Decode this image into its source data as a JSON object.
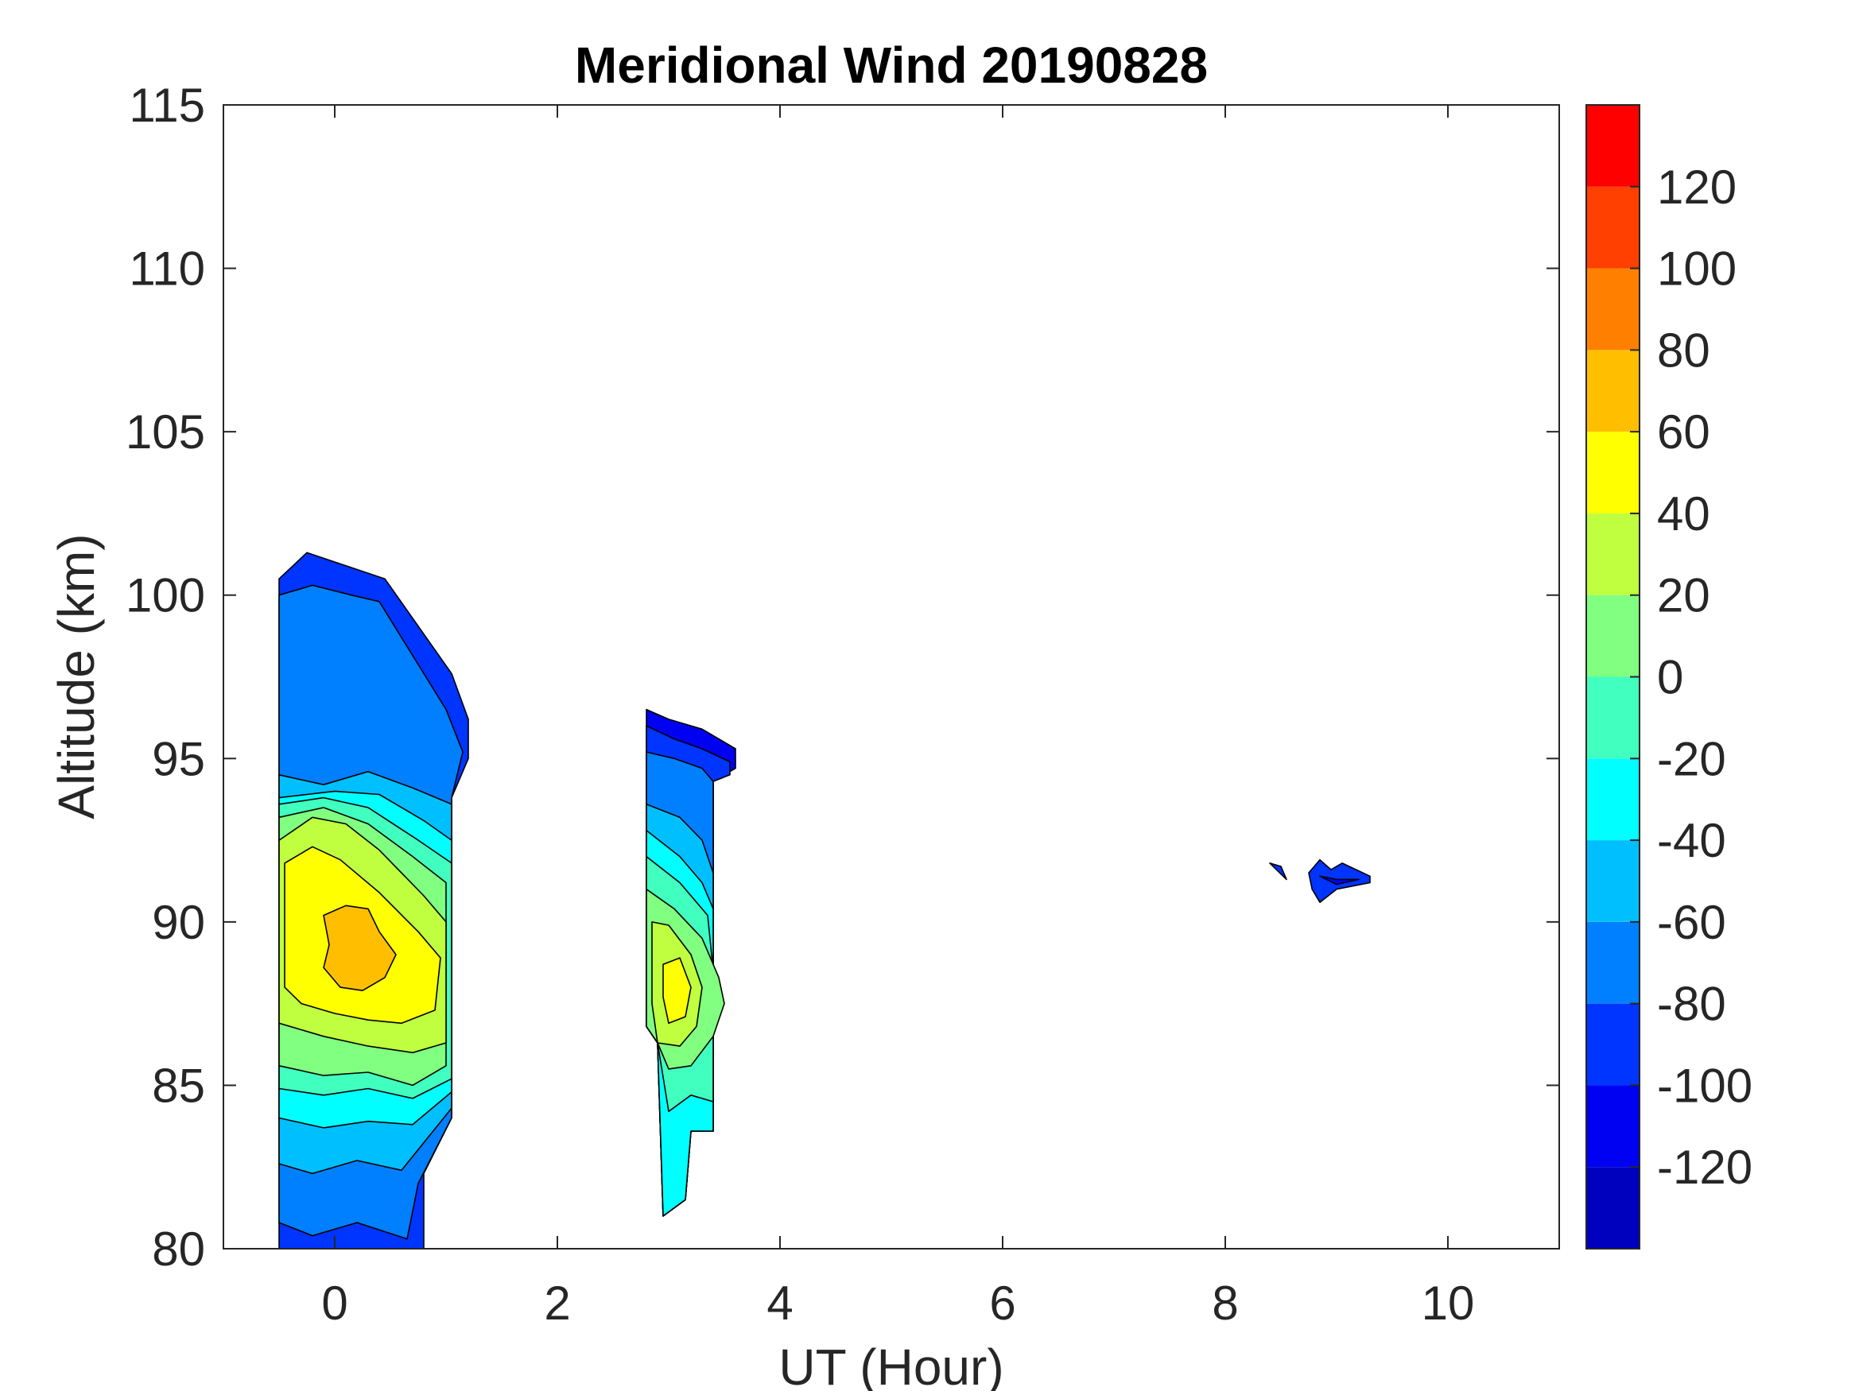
{
  "chart_data": {
    "type": "contour",
    "title": "Meridional Wind 20190828",
    "xlabel": "UT (Hour)",
    "ylabel": "Altitude (km)",
    "xlim": [
      -1,
      11
    ],
    "ylim": [
      80,
      115
    ],
    "xticks": [
      0,
      2,
      4,
      6,
      8,
      10
    ],
    "yticks": [
      80,
      85,
      90,
      95,
      100,
      105,
      110,
      115
    ],
    "colorbar": {
      "min": -140,
      "max": 140,
      "ticks": [
        -120,
        -100,
        -80,
        -60,
        -40,
        -20,
        0,
        20,
        40,
        60,
        80,
        100,
        120
      ],
      "levels": [
        {
          "from": -140,
          "to": -120,
          "color": "#0000bf"
        },
        {
          "from": -120,
          "to": -100,
          "color": "#0000f2"
        },
        {
          "from": -100,
          "to": -80,
          "color": "#0034ff"
        },
        {
          "from": -80,
          "to": -60,
          "color": "#0080ff"
        },
        {
          "from": -60,
          "to": -40,
          "color": "#00bfff"
        },
        {
          "from": -40,
          "to": -20,
          "color": "#00ffff"
        },
        {
          "from": -20,
          "to": 0,
          "color": "#40ffbf"
        },
        {
          "from": 0,
          "to": 20,
          "color": "#80ff80"
        },
        {
          "from": 20,
          "to": 40,
          "color": "#bfff40"
        },
        {
          "from": 40,
          "to": 60,
          "color": "#ffff00"
        },
        {
          "from": 60,
          "to": 80,
          "color": "#ffbf00"
        },
        {
          "from": 80,
          "to": 100,
          "color": "#ff8000"
        },
        {
          "from": 100,
          "to": 120,
          "color": "#ff4000"
        },
        {
          "from": 120,
          "to": 140,
          "color": "#ff0000"
        }
      ]
    },
    "regions": [
      {
        "name": "block-1",
        "bands": [
          {
            "value": -100,
            "points": [
              [
                -0.5,
                100.5
              ],
              [
                -0.25,
                101.3
              ],
              [
                0.1,
                100.9
              ],
              [
                0.45,
                100.5
              ],
              [
                1.05,
                97.6
              ],
              [
                1.2,
                96.2
              ],
              [
                1.2,
                95.0
              ],
              [
                1.05,
                93.8
              ],
              [
                1.05,
                84.0
              ],
              [
                0.8,
                82.3
              ],
              [
                0.8,
                80
              ],
              [
                -0.5,
                80
              ]
            ]
          },
          {
            "value": -80,
            "points": [
              [
                -0.5,
                100.0
              ],
              [
                -0.2,
                100.3
              ],
              [
                0.15,
                100.0
              ],
              [
                0.4,
                99.8
              ],
              [
                1.0,
                96.5
              ],
              [
                1.15,
                95.2
              ],
              [
                1.05,
                93.8
              ],
              [
                1.05,
                84.0
              ],
              [
                0.75,
                82.0
              ],
              [
                0.65,
                80.3
              ],
              [
                0.2,
                80.8
              ],
              [
                -0.2,
                80.4
              ],
              [
                -0.5,
                80.8
              ]
            ]
          },
          {
            "value": -60,
            "points": [
              [
                -0.5,
                94.5
              ],
              [
                -0.1,
                94.2
              ],
              [
                0.3,
                94.6
              ],
              [
                0.7,
                94.1
              ],
              [
                1.05,
                93.6
              ],
              [
                1.05,
                84.3
              ],
              [
                0.6,
                82.4
              ],
              [
                0.2,
                82.7
              ],
              [
                -0.2,
                82.3
              ],
              [
                -0.5,
                82.6
              ]
            ]
          },
          {
            "value": -40,
            "points": [
              [
                -0.5,
                93.8
              ],
              [
                0.0,
                94.0
              ],
              [
                0.4,
                93.9
              ],
              [
                0.8,
                93.1
              ],
              [
                1.05,
                92.5
              ],
              [
                1.05,
                84.8
              ],
              [
                0.7,
                83.8
              ],
              [
                0.3,
                83.9
              ],
              [
                -0.1,
                83.7
              ],
              [
                -0.5,
                84.0
              ]
            ]
          },
          {
            "value": -20,
            "points": [
              [
                -0.5,
                93.6
              ],
              [
                -0.1,
                93.8
              ],
              [
                0.3,
                93.5
              ],
              [
                0.75,
                92.5
              ],
              [
                1.05,
                91.8
              ],
              [
                1.05,
                85.2
              ],
              [
                0.7,
                84.6
              ],
              [
                0.3,
                84.9
              ],
              [
                -0.1,
                84.7
              ],
              [
                -0.5,
                84.9
              ]
            ]
          },
          {
            "value": 0,
            "points": [
              [
                -0.5,
                93.2
              ],
              [
                -0.1,
                93.5
              ],
              [
                0.3,
                93.0
              ],
              [
                0.7,
                92.0
              ],
              [
                1.0,
                91.2
              ],
              [
                1.0,
                85.6
              ],
              [
                0.7,
                85.0
              ],
              [
                0.3,
                85.4
              ],
              [
                -0.1,
                85.3
              ],
              [
                -0.5,
                85.6
              ]
            ]
          },
          {
            "value": 20,
            "points": [
              [
                -0.5,
                92.5
              ],
              [
                -0.2,
                93.2
              ],
              [
                0.1,
                93.0
              ],
              [
                0.4,
                92.2
              ],
              [
                0.8,
                90.8
              ],
              [
                1.0,
                90.0
              ],
              [
                1.0,
                86.3
              ],
              [
                0.7,
                86.0
              ],
              [
                0.3,
                86.2
              ],
              [
                -0.1,
                86.5
              ],
              [
                -0.5,
                86.9
              ]
            ]
          },
          {
            "value": 40,
            "points": [
              [
                -0.45,
                91.8
              ],
              [
                -0.2,
                92.3
              ],
              [
                0.05,
                91.9
              ],
              [
                0.4,
                90.9
              ],
              [
                0.75,
                89.7
              ],
              [
                0.95,
                88.9
              ],
              [
                0.9,
                87.3
              ],
              [
                0.6,
                86.9
              ],
              [
                0.3,
                87.0
              ],
              [
                0.0,
                87.2
              ],
              [
                -0.3,
                87.5
              ],
              [
                -0.45,
                88.0
              ]
            ]
          },
          {
            "value": 60,
            "points": [
              [
                -0.1,
                90.2
              ],
              [
                0.1,
                90.5
              ],
              [
                0.3,
                90.4
              ],
              [
                0.4,
                89.7
              ],
              [
                0.55,
                89.0
              ],
              [
                0.45,
                88.3
              ],
              [
                0.25,
                87.9
              ],
              [
                0.05,
                88.0
              ],
              [
                -0.1,
                88.6
              ],
              [
                -0.05,
                89.3
              ]
            ]
          }
        ]
      },
      {
        "name": "block-2",
        "bands": [
          {
            "value": -120,
            "points": [
              [
                2.8,
                96.5
              ],
              [
                3.0,
                96.2
              ],
              [
                3.3,
                95.9
              ],
              [
                3.6,
                95.3
              ],
              [
                3.6,
                94.7
              ],
              [
                3.4,
                94.3
              ],
              [
                3.4,
                83.6
              ],
              [
                3.2,
                83.6
              ],
              [
                3.15,
                81.5
              ],
              [
                2.95,
                81.0
              ],
              [
                2.9,
                86.3
              ],
              [
                2.8,
                86.8
              ]
            ]
          },
          {
            "value": -100,
            "points": [
              [
                2.8,
                96.0
              ],
              [
                3.05,
                95.6
              ],
              [
                3.3,
                95.3
              ],
              [
                3.55,
                94.9
              ],
              [
                3.55,
                94.5
              ],
              [
                3.4,
                94.3
              ],
              [
                3.4,
                83.6
              ],
              [
                3.2,
                83.6
              ],
              [
                3.15,
                81.5
              ],
              [
                2.95,
                81.0
              ],
              [
                2.9,
                86.3
              ],
              [
                2.8,
                86.8
              ]
            ]
          },
          {
            "value": -80,
            "points": [
              [
                2.8,
                95.2
              ],
              [
                3.05,
                95.0
              ],
              [
                3.3,
                94.7
              ],
              [
                3.4,
                94.3
              ],
              [
                3.4,
                83.6
              ],
              [
                3.2,
                83.6
              ],
              [
                3.15,
                81.5
              ],
              [
                2.95,
                81.0
              ],
              [
                2.9,
                86.3
              ],
              [
                2.8,
                86.8
              ]
            ]
          },
          {
            "value": -60,
            "points": [
              [
                2.8,
                93.6
              ],
              [
                3.1,
                93.2
              ],
              [
                3.3,
                92.5
              ],
              [
                3.4,
                91.5
              ],
              [
                3.4,
                83.6
              ],
              [
                3.2,
                83.6
              ],
              [
                3.15,
                81.5
              ],
              [
                2.95,
                81.0
              ],
              [
                2.9,
                86.3
              ],
              [
                2.8,
                86.8
              ]
            ]
          },
          {
            "value": -40,
            "points": [
              [
                2.8,
                92.8
              ],
              [
                3.1,
                92.0
              ],
              [
                3.3,
                91.2
              ],
              [
                3.4,
                90.4
              ],
              [
                3.4,
                83.6
              ],
              [
                3.2,
                83.6
              ],
              [
                3.15,
                81.5
              ],
              [
                2.95,
                81.0
              ],
              [
                2.9,
                86.3
              ],
              [
                2.8,
                86.8
              ]
            ]
          },
          {
            "value": -20,
            "points": [
              [
                2.8,
                92.0
              ],
              [
                3.1,
                91.2
              ],
              [
                3.35,
                90.2
              ],
              [
                3.4,
                88.5
              ],
              [
                3.4,
                84.5
              ],
              [
                3.2,
                84.7
              ],
              [
                3.0,
                84.2
              ],
              [
                2.9,
                86.3
              ],
              [
                2.8,
                86.8
              ]
            ]
          },
          {
            "value": 0,
            "points": [
              [
                2.8,
                91.0
              ],
              [
                3.05,
                90.4
              ],
              [
                3.3,
                89.5
              ],
              [
                3.45,
                88.3
              ],
              [
                3.5,
                87.5
              ],
              [
                3.4,
                86.5
              ],
              [
                3.2,
                85.6
              ],
              [
                3.0,
                85.5
              ],
              [
                2.9,
                86.3
              ],
              [
                2.8,
                86.8
              ]
            ]
          },
          {
            "value": 20,
            "points": [
              [
                2.85,
                90.0
              ],
              [
                3.0,
                89.9
              ],
              [
                3.2,
                89.0
              ],
              [
                3.3,
                88.0
              ],
              [
                3.25,
                86.8
              ],
              [
                3.1,
                86.2
              ],
              [
                2.9,
                86.3
              ],
              [
                2.85,
                87.5
              ]
            ]
          },
          {
            "value": 40,
            "points": [
              [
                2.95,
                88.7
              ],
              [
                3.1,
                88.9
              ],
              [
                3.2,
                88.0
              ],
              [
                3.15,
                87.1
              ],
              [
                3.0,
                86.9
              ],
              [
                2.95,
                87.7
              ]
            ]
          }
        ]
      },
      {
        "name": "block-3",
        "bands": [
          {
            "value": -100,
            "points": [
              [
                8.4,
                91.8
              ],
              [
                8.55,
                91.3
              ],
              [
                8.5,
                91.7
              ]
            ]
          },
          {
            "value": -100,
            "points": [
              [
                8.75,
                91.5
              ],
              [
                8.85,
                91.9
              ],
              [
                8.95,
                91.6
              ],
              [
                9.05,
                91.8
              ],
              [
                9.3,
                91.4
              ],
              [
                9.3,
                91.2
              ],
              [
                9.0,
                91.0
              ],
              [
                8.85,
                90.6
              ],
              [
                8.78,
                91.0
              ]
            ]
          },
          {
            "value": -120,
            "points": [
              [
                8.85,
                91.4
              ],
              [
                9.0,
                91.3
              ],
              [
                9.2,
                91.3
              ],
              [
                9.0,
                91.15
              ]
            ]
          }
        ]
      }
    ]
  }
}
